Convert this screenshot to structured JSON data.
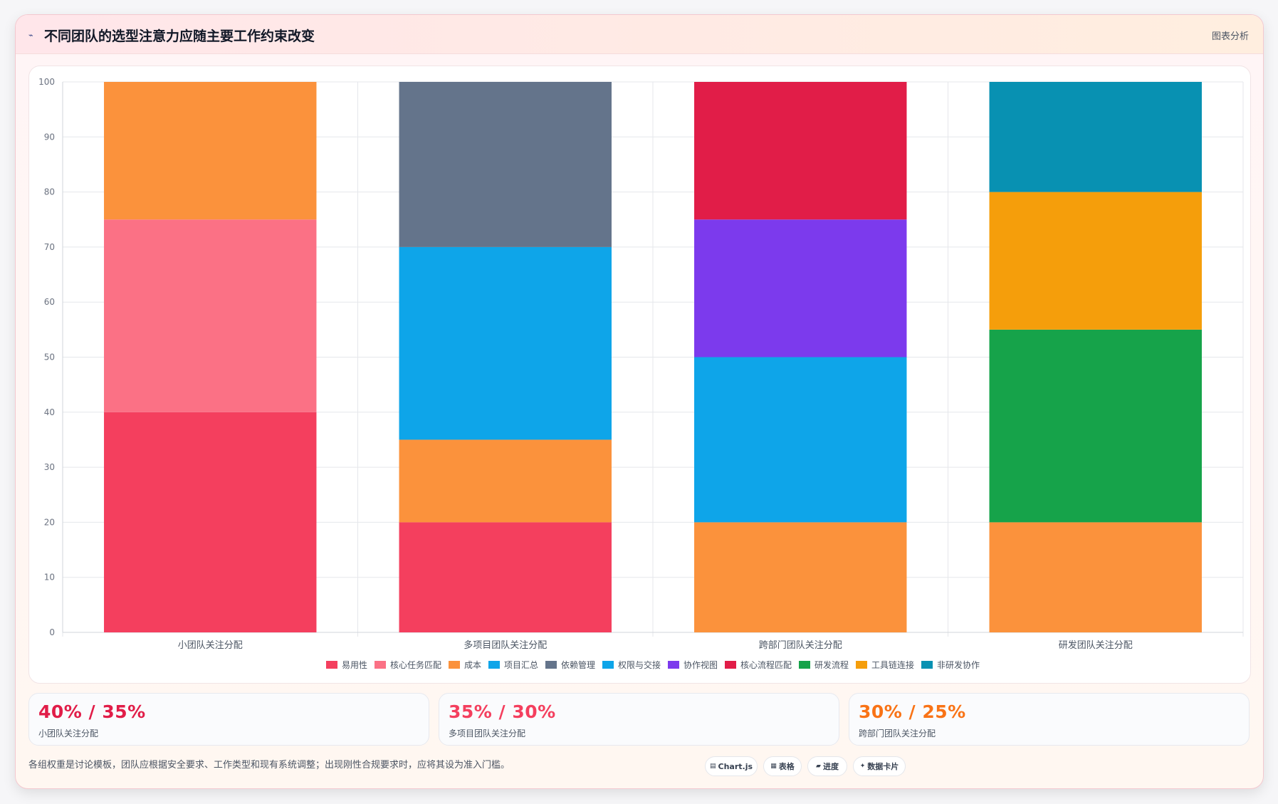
{
  "header": {
    "icon": "chart-line-icon",
    "title": "不同团队的选型注意力应随主要工作约束改变",
    "action_label": "图表分析"
  },
  "chart_data": {
    "type": "bar",
    "stacked": true,
    "categories": [
      "小团队关注分配",
      "多项目团队关注分配",
      "跨部门团队关注分配",
      "研发团队关注分配"
    ],
    "ylim": [
      0,
      100
    ],
    "yticks": [
      0,
      10,
      20,
      30,
      40,
      50,
      60,
      70,
      80,
      90,
      100
    ],
    "grid": true,
    "legend_position": "bottom",
    "series": [
      {
        "name": "易用性",
        "color": "#f43f5e",
        "values": [
          40,
          20,
          0,
          0
        ]
      },
      {
        "name": "核心任务匹配",
        "color": "#fb7185",
        "values": [
          35,
          0,
          0,
          0
        ]
      },
      {
        "name": "成本",
        "color": "#fb923c",
        "values": [
          25,
          15,
          20,
          20
        ]
      },
      {
        "name": "项目汇总",
        "color": "#0ea5e9",
        "values": [
          0,
          35,
          0,
          0
        ]
      },
      {
        "name": "依赖管理",
        "color": "#64748b",
        "values": [
          0,
          30,
          0,
          0
        ]
      },
      {
        "name": "权限与交接",
        "color": "#0ea5e9",
        "values": [
          0,
          0,
          30,
          0
        ]
      },
      {
        "name": "协作视图",
        "color": "#7c3aed",
        "values": [
          0,
          0,
          25,
          0
        ]
      },
      {
        "name": "核心流程匹配",
        "color": "#e11d48",
        "values": [
          0,
          0,
          25,
          0
        ]
      },
      {
        "name": "研发流程",
        "color": "#16a34a",
        "values": [
          0,
          0,
          0,
          35
        ]
      },
      {
        "name": "工具链连接",
        "color": "#f59e0b",
        "values": [
          0,
          0,
          0,
          25
        ]
      },
      {
        "name": "非研发协作",
        "color": "#0891b2",
        "values": [
          0,
          0,
          0,
          20
        ]
      }
    ]
  },
  "stats": [
    {
      "value": "40% / 35%",
      "label": "小团队关注分配",
      "color": "#e11d48"
    },
    {
      "value": "35% / 30%",
      "label": "多项目团队关注分配",
      "color": "#f43f5e"
    },
    {
      "value": "30% / 25%",
      "label": "跨部门团队关注分配",
      "color": "#f97316"
    }
  ],
  "footer": {
    "note": "各组权重是讨论模板，团队应根据安全要求、工作类型和现有系统调整；出现刚性合规要求时，应将其设为准入门槛。",
    "chips": [
      {
        "icon": "chart-icon",
        "label": "Chart.js"
      },
      {
        "icon": "table-icon",
        "label": "表格"
      },
      {
        "icon": "progress-icon",
        "label": "进度"
      },
      {
        "icon": "sparkle-icon",
        "label": "数据卡片"
      }
    ]
  }
}
